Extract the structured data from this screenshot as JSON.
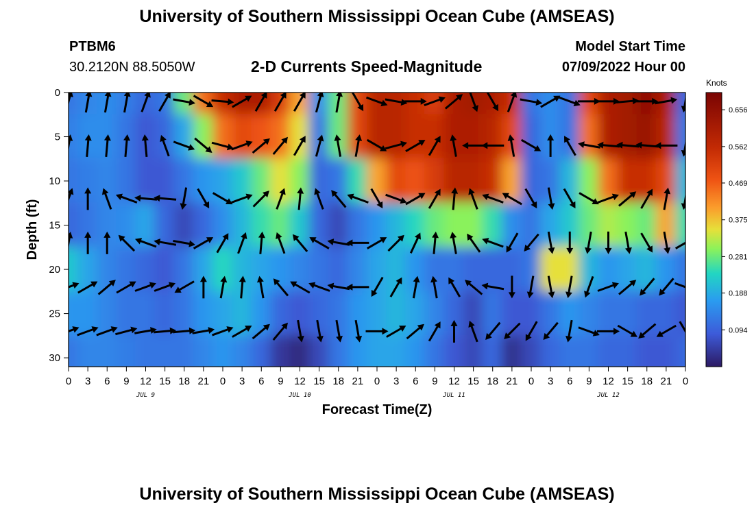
{
  "header": {
    "title": "University of Southern Mississippi Ocean Cube (AMSEAS)",
    "station": "PTBM6",
    "coords": "30.2120N  88.5050W",
    "subtitle": "2-D Currents Speed-Magnitude",
    "model_start_label": "Model Start Time",
    "model_start_value": "07/09/2022 Hour 00"
  },
  "footer": {
    "title": "University of Southern Mississippi Ocean Cube (AMSEAS)"
  },
  "chart_data": {
    "type": "heatmap",
    "xlabel": "Forecast Time(Z)",
    "ylabel": "Depth (ft)",
    "x_tick_labels": [
      "0",
      "3",
      "6",
      "9",
      "12",
      "15",
      "18",
      "21",
      "0",
      "3",
      "6",
      "9",
      "12",
      "15",
      "18",
      "21",
      "0",
      "3",
      "6",
      "9",
      "12",
      "15",
      "18",
      "21",
      "0",
      "3",
      "6",
      "9",
      "12",
      "15",
      "18",
      "21",
      "0"
    ],
    "date_labels": [
      {
        "label": "JUL 9",
        "hour": 12
      },
      {
        "label": "JUL 10",
        "hour": 36
      },
      {
        "label": "JUL 11",
        "hour": 60
      },
      {
        "label": "JUL 12",
        "hour": 84
      }
    ],
    "xlim": [
      0,
      96
    ],
    "ylim": [
      0,
      31
    ],
    "y_ticks": [
      0,
      5,
      10,
      15,
      20,
      25,
      30
    ],
    "colorbar": {
      "unit": "Knots",
      "ticks": [
        "0.656",
        "0.562",
        "0.469",
        "0.375",
        "0.281",
        "0.188",
        "0.094"
      ],
      "range": [
        0,
        0.7
      ]
    },
    "speed_grid": {
      "depths": [
        0,
        5,
        10,
        15,
        20,
        25,
        30
      ],
      "hours": [
        0,
        3,
        6,
        9,
        12,
        15,
        18,
        21,
        24,
        27,
        30,
        33,
        36,
        39,
        42,
        45,
        48,
        51,
        54,
        57,
        60,
        63,
        66,
        69,
        72,
        75,
        78,
        81,
        84,
        87,
        90,
        93,
        96
      ],
      "values": [
        [
          0.12,
          0.14,
          0.15,
          0.13,
          0.1,
          0.12,
          0.28,
          0.45,
          0.55,
          0.6,
          0.6,
          0.52,
          0.4,
          0.15,
          0.28,
          0.5,
          0.58,
          0.58,
          0.55,
          0.52,
          0.6,
          0.62,
          0.6,
          0.55,
          0.12,
          0.15,
          0.12,
          0.5,
          0.6,
          0.62,
          0.66,
          0.6,
          0.1
        ],
        [
          0.13,
          0.15,
          0.15,
          0.12,
          0.08,
          0.1,
          0.18,
          0.3,
          0.45,
          0.5,
          0.48,
          0.45,
          0.35,
          0.12,
          0.28,
          0.5,
          0.58,
          0.58,
          0.55,
          0.55,
          0.6,
          0.6,
          0.58,
          0.5,
          0.1,
          0.15,
          0.12,
          0.45,
          0.6,
          0.62,
          0.64,
          0.58,
          0.12
        ],
        [
          0.12,
          0.13,
          0.14,
          0.12,
          0.08,
          0.08,
          0.12,
          0.16,
          0.18,
          0.22,
          0.28,
          0.35,
          0.3,
          0.1,
          0.12,
          0.25,
          0.4,
          0.5,
          0.48,
          0.52,
          0.58,
          0.58,
          0.55,
          0.4,
          0.1,
          0.12,
          0.2,
          0.3,
          0.45,
          0.55,
          0.55,
          0.5,
          0.2
        ],
        [
          0.1,
          0.12,
          0.14,
          0.15,
          0.18,
          0.1,
          0.06,
          0.1,
          0.15,
          0.2,
          0.25,
          0.28,
          0.22,
          0.1,
          0.06,
          0.12,
          0.16,
          0.2,
          0.24,
          0.28,
          0.3,
          0.3,
          0.25,
          0.15,
          0.12,
          0.18,
          0.22,
          0.28,
          0.32,
          0.3,
          0.28,
          0.4,
          0.25
        ],
        [
          0.22,
          0.18,
          0.14,
          0.12,
          0.1,
          0.08,
          0.12,
          0.18,
          0.24,
          0.2,
          0.18,
          0.16,
          0.14,
          0.12,
          0.1,
          0.14,
          0.18,
          0.2,
          0.16,
          0.12,
          0.12,
          0.1,
          0.1,
          0.1,
          0.12,
          0.35,
          0.35,
          0.2,
          0.16,
          0.18,
          0.2,
          0.16,
          0.12
        ],
        [
          0.16,
          0.16,
          0.14,
          0.12,
          0.12,
          0.1,
          0.12,
          0.16,
          0.18,
          0.2,
          0.16,
          0.1,
          0.08,
          0.1,
          0.12,
          0.16,
          0.18,
          0.2,
          0.18,
          0.14,
          0.1,
          0.06,
          0.12,
          0.08,
          0.08,
          0.12,
          0.16,
          0.14,
          0.12,
          0.12,
          0.1,
          0.1,
          0.08
        ],
        [
          0.12,
          0.14,
          0.14,
          0.13,
          0.12,
          0.12,
          0.12,
          0.14,
          0.16,
          0.14,
          0.1,
          0.04,
          0.02,
          0.06,
          0.12,
          0.16,
          0.18,
          0.18,
          0.16,
          0.12,
          0.08,
          0.06,
          0.1,
          0.03,
          0.06,
          0.1,
          0.12,
          0.12,
          0.1,
          0.1,
          0.08,
          0.08,
          0.1
        ]
      ]
    },
    "vector_depths": [
      1,
      6,
      12,
      17,
      22,
      27
    ],
    "vector_hours": [
      0,
      3,
      6,
      9,
      12,
      15,
      18,
      21,
      24,
      27,
      30,
      33,
      36,
      39,
      42,
      45,
      48,
      51,
      54,
      57,
      60,
      63,
      66,
      69,
      72,
      75,
      78,
      81,
      84,
      87,
      90,
      93,
      96
    ],
    "vector_dirs_deg": [
      [
        75,
        80,
        80,
        80,
        70,
        60,
        -10,
        -30,
        -5,
        30,
        60,
        60,
        60,
        75,
        80,
        -60,
        -20,
        -10,
        0,
        20,
        40,
        -70,
        -60,
        70,
        -10,
        30,
        -20,
        0,
        0,
        5,
        0,
        10,
        -100
      ],
      [
        80,
        85,
        85,
        85,
        95,
        110,
        -20,
        -40,
        -15,
        20,
        40,
        50,
        60,
        75,
        100,
        80,
        -30,
        15,
        30,
        60,
        100,
        180,
        180,
        100,
        -30,
        90,
        120,
        170,
        175,
        175,
        175,
        180,
        -100
      ],
      [
        70,
        90,
        110,
        160,
        175,
        175,
        -100,
        -60,
        -30,
        20,
        45,
        70,
        85,
        110,
        130,
        160,
        -60,
        -20,
        30,
        60,
        85,
        110,
        160,
        150,
        -60,
        -80,
        -60,
        -30,
        20,
        40,
        60,
        80,
        -100
      ],
      [
        80,
        90,
        90,
        135,
        160,
        170,
        -10,
        30,
        60,
        70,
        85,
        110,
        130,
        150,
        170,
        180,
        30,
        45,
        65,
        85,
        100,
        125,
        160,
        -120,
        -130,
        -80,
        -90,
        -100,
        -90,
        -80,
        -60,
        -80,
        30
      ],
      [
        20,
        30,
        40,
        30,
        20,
        20,
        -150,
        90,
        80,
        85,
        100,
        130,
        150,
        160,
        170,
        180,
        -120,
        60,
        80,
        100,
        120,
        140,
        170,
        -90,
        -100,
        -80,
        -100,
        -110,
        20,
        40,
        -130,
        -130,
        -20
      ],
      [
        20,
        20,
        20,
        15,
        10,
        5,
        5,
        10,
        20,
        30,
        40,
        50,
        -80,
        -80,
        -80,
        -80,
        0,
        30,
        40,
        60,
        90,
        110,
        -130,
        -135,
        -120,
        -130,
        -100,
        -20,
        0,
        -30,
        -140,
        -150,
        -60
      ]
    ]
  }
}
